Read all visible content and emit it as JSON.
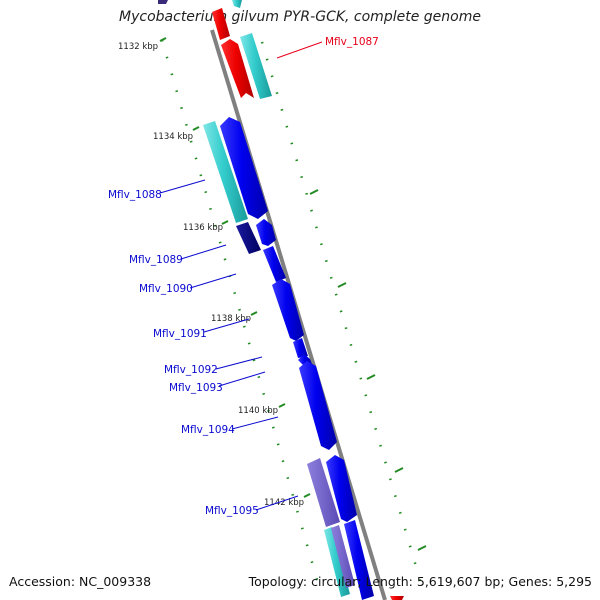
{
  "title": "Mycobacterium gilvum PYR-GCK, complete genome",
  "footer": {
    "accession": "Accession: NC_009338",
    "topology": "Topology: circular; Length: 5,619,607 bp; Genes: 5,295"
  },
  "ticks": [
    "1132 kbp",
    "1134 kbp",
    "1136 kbp",
    "1138 kbp",
    "1140 kbp",
    "1142 kbp"
  ],
  "genes": [
    {
      "label": "Mflv_1087",
      "color": "#e8001a"
    },
    {
      "label": "Mflv_1088",
      "color": "#0a0ad0"
    },
    {
      "label": "Mflv_1089",
      "color": "#0a0ad0"
    },
    {
      "label": "Mflv_1090",
      "color": "#0a0ad0"
    },
    {
      "label": "Mflv_1091",
      "color": "#0a0ad0"
    },
    {
      "label": "Mflv_1092",
      "color": "#0a0ad0"
    },
    {
      "label": "Mflv_1093",
      "color": "#0a0ad0"
    },
    {
      "label": "Mflv_1094",
      "color": "#0a0ad0"
    },
    {
      "label": "Mflv_1095",
      "color": "#0a0ad0"
    }
  ],
  "colors": {
    "backbone": "#808080",
    "cds_plus": "#0000ee",
    "cds_minus": "#ee0000",
    "rna": "#33cccc",
    "dark": "#000080",
    "purple": "#6f5fc8",
    "dots": "#228b22",
    "label_red": "#e8001a",
    "label_blue": "#0a0ad0"
  }
}
